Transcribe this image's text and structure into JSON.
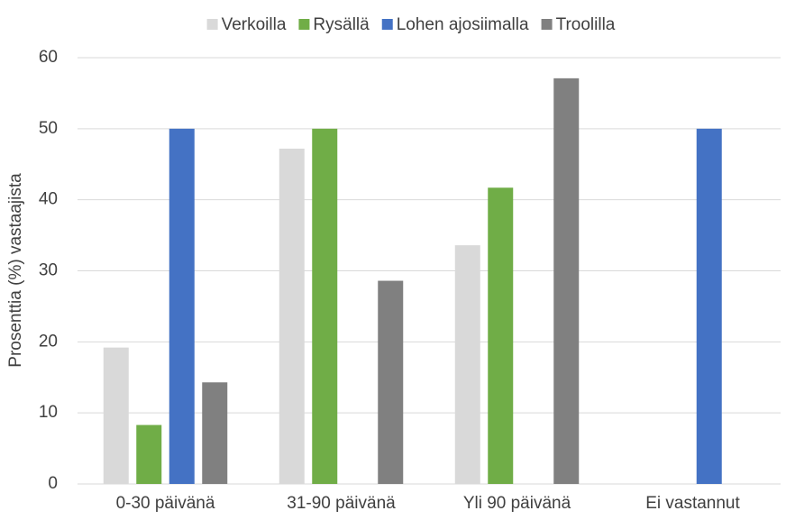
{
  "chart_data": {
    "type": "bar",
    "y_label": "Prosenttia (%) vastaajista",
    "categories": [
      "0-30 päivänä",
      "31-90 päivänä",
      "Yli 90 päivänä",
      "Ei vastannut"
    ],
    "series": [
      {
        "name": "Verkoilla",
        "color": "#d9d9d9",
        "values": [
          19.2,
          47.2,
          33.6,
          0
        ]
      },
      {
        "name": "Rysällä",
        "color": "#70ad47",
        "values": [
          8.3,
          50,
          41.7,
          0
        ]
      },
      {
        "name": "Lohen ajosiimalla",
        "color": "#4472c4",
        "values": [
          50,
          0,
          0,
          50
        ]
      },
      {
        "name": "Troolilla",
        "color": "#808080",
        "values": [
          14.3,
          28.6,
          57.1,
          0
        ]
      }
    ],
    "ylim": [
      0,
      60
    ],
    "yticks": [
      0,
      10,
      20,
      30,
      40,
      50,
      60
    ],
    "grid": true,
    "legend": "top"
  }
}
